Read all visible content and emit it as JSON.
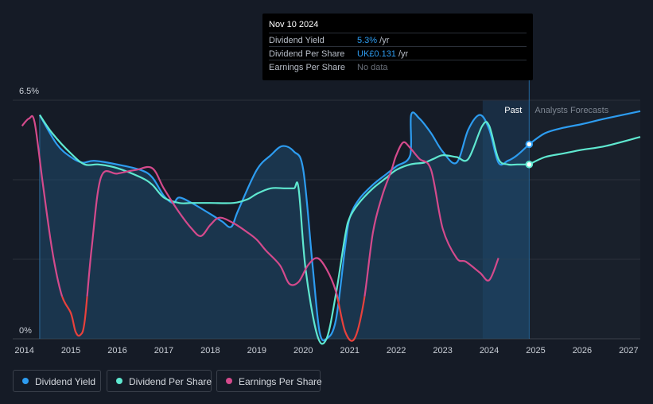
{
  "colors": {
    "dividend_yield": "#2d9cf0",
    "dividend_per_share": "#5fe8d0",
    "earnings_per_share": "#d44a8c",
    "earnings_negative": "#e8413c",
    "grid": "#2a303b",
    "axis_text": "#c9ced6"
  },
  "tooltip": {
    "date": "Nov 10 2024",
    "rows": [
      {
        "label": "Dividend Yield",
        "value": "5.3%",
        "unit": " /yr"
      },
      {
        "label": "Dividend Per Share",
        "value": "UK£0.131",
        "unit": " /yr"
      },
      {
        "label": "Earnings Per Share",
        "value": "No data",
        "unit": ""
      }
    ]
  },
  "labels": {
    "past": "Past",
    "forecast": "Analysts Forecasts"
  },
  "legend": [
    {
      "label": "Dividend Yield",
      "key": "dividend_yield"
    },
    {
      "label": "Dividend Per Share",
      "key": "dividend_per_share"
    },
    {
      "label": "Earnings Per Share",
      "key": "earnings_per_share"
    }
  ],
  "chart_data": {
    "type": "line",
    "title": "",
    "xlabel": "",
    "ylabel": "",
    "xlim": [
      2013.75,
      2027.25
    ],
    "ylim": [
      0,
      6.5
    ],
    "y_tick_labels": [
      "0%",
      "6.5%"
    ],
    "x_ticks": [
      2014,
      2015,
      2016,
      2017,
      2018,
      2019,
      2020,
      2021,
      2022,
      2023,
      2024,
      2025,
      2026,
      2027
    ],
    "forecast_start": 2024.86,
    "series": [
      {
        "name": "Dividend Yield",
        "unit": "%",
        "area": true,
        "x": [
          2014.33,
          2014.7,
          2015.0,
          2015.25,
          2015.5,
          2016.0,
          2016.5,
          2016.75,
          2017.0,
          2017.2,
          2017.33,
          2017.6,
          2018.0,
          2018.25,
          2018.45,
          2018.6,
          2019.0,
          2019.3,
          2019.55,
          2019.8,
          2020.0,
          2020.2,
          2020.35,
          2020.5,
          2020.7,
          2020.9,
          2021.0,
          2021.2,
          2021.5,
          2021.8,
          2022.0,
          2022.3,
          2022.32,
          2022.5,
          2022.75,
          2023.0,
          2023.3,
          2023.55,
          2023.8,
          2024.0,
          2024.2,
          2024.4,
          2024.6,
          2024.86,
          2025.2,
          2025.6,
          2026.0,
          2026.5,
          2027.25
        ],
        "y": [
          6.1,
          5.3,
          4.95,
          4.8,
          4.85,
          4.75,
          4.6,
          4.4,
          3.9,
          3.7,
          3.85,
          3.7,
          3.4,
          3.2,
          3.05,
          3.5,
          4.6,
          5.0,
          5.25,
          5.1,
          4.6,
          2.0,
          0.2,
          0.0,
          0.5,
          2.5,
          3.3,
          3.8,
          4.2,
          4.5,
          4.7,
          5.0,
          6.1,
          6.0,
          5.6,
          5.1,
          4.8,
          5.7,
          6.1,
          5.7,
          4.8,
          4.85,
          5.0,
          5.3,
          5.6,
          5.75,
          5.85,
          6.0,
          6.2
        ]
      },
      {
        "name": "Dividend Per Share",
        "unit": "UK£",
        "area": false,
        "x": [
          2014.33,
          2014.6,
          2015.0,
          2015.3,
          2015.6,
          2016.0,
          2016.5,
          2016.75,
          2017.0,
          2017.33,
          2017.6,
          2018.0,
          2018.5,
          2018.8,
          2019.0,
          2019.3,
          2019.6,
          2019.8,
          2019.9,
          2020.05,
          2020.3,
          2020.5,
          2020.7,
          2020.9,
          2021.0,
          2021.2,
          2021.5,
          2021.8,
          2022.0,
          2022.3,
          2022.6,
          2022.8,
          2023.0,
          2023.3,
          2023.55,
          2023.85,
          2024.0,
          2024.2,
          2024.4,
          2024.6,
          2024.86,
          2025.2,
          2025.6,
          2026.0,
          2026.5,
          2027.25
        ],
        "y": [
          6.1,
          5.6,
          5.05,
          4.75,
          4.75,
          4.65,
          4.4,
          4.2,
          3.85,
          3.7,
          3.7,
          3.7,
          3.7,
          3.8,
          3.95,
          4.1,
          4.1,
          4.1,
          4.1,
          1.9,
          0.1,
          0.0,
          1.2,
          2.8,
          3.3,
          3.7,
          4.1,
          4.4,
          4.6,
          4.75,
          4.8,
          4.9,
          5.0,
          4.95,
          4.9,
          5.8,
          5.8,
          4.9,
          4.75,
          4.75,
          4.75,
          4.95,
          5.05,
          5.15,
          5.25,
          5.5
        ]
      },
      {
        "name": "Earnings Per Share",
        "unit": "",
        "area": false,
        "negative_color": "#e8413c",
        "threshold": 1.15,
        "x": [
          2013.95,
          2014.1,
          2014.22,
          2014.4,
          2014.6,
          2014.8,
          2015.0,
          2015.1,
          2015.2,
          2015.3,
          2015.45,
          2015.65,
          2016.0,
          2016.4,
          2016.75,
          2017.0,
          2017.3,
          2017.6,
          2017.8,
          2018.0,
          2018.2,
          2018.5,
          2018.8,
          2019.0,
          2019.2,
          2019.5,
          2019.7,
          2019.9,
          2020.1,
          2020.3,
          2020.5,
          2020.7,
          2020.9,
          2021.1,
          2021.3,
          2021.5,
          2021.7,
          2021.9,
          2022.0,
          2022.15,
          2022.3,
          2022.5,
          2022.75,
          2023.0,
          2023.3,
          2023.5,
          2023.8,
          2024.0,
          2024.2
        ],
        "y": [
          5.8,
          6.0,
          5.9,
          4.2,
          2.4,
          1.2,
          0.7,
          0.2,
          0.1,
          0.5,
          2.5,
          4.4,
          4.5,
          4.6,
          4.65,
          4.1,
          3.5,
          3.0,
          2.8,
          3.1,
          3.3,
          3.15,
          2.9,
          2.7,
          2.4,
          2.0,
          1.5,
          1.55,
          2.0,
          2.2,
          1.9,
          1.3,
          0.2,
          0.0,
          1.0,
          2.9,
          3.9,
          4.6,
          5.0,
          5.35,
          5.2,
          4.9,
          4.6,
          3.0,
          2.2,
          2.1,
          1.8,
          1.6,
          2.2
        ]
      }
    ]
  }
}
